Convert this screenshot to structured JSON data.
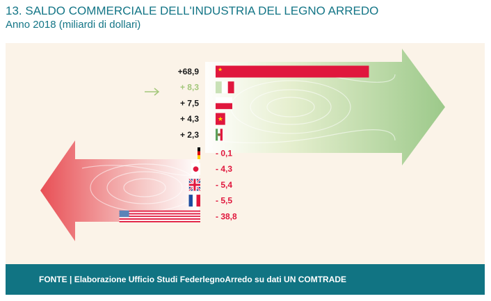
{
  "title": "13. SALDO COMMERCIALE DELL'INDUSTRIA DEL LEGNO ARREDO",
  "subtitle": "Anno 2018 (miliardi di dollari)",
  "footer": "FONTE | Elaborazione Ufficio Studi FederlegnoArredo su dati UN COMTRADE",
  "colors": {
    "teal": "#137586",
    "positive_bar": "#e0173d",
    "highlight_label": "#a3c77a",
    "negative_label": "#e0173d",
    "positive_label": "#1a1a1a"
  },
  "chart_data": {
    "type": "bar",
    "title": "13. SALDO COMMERCIALE DELL'INDUSTRIA DEL LEGNO ARREDO",
    "subtitle": "Anno 2018 (miliardi di dollari)",
    "orientation": "horizontal",
    "unit": "miliardi di dollari",
    "items": [
      {
        "flag": "china-flag",
        "value": 68.9,
        "label": "+68,9",
        "highlight": false
      },
      {
        "flag": "italy-flag",
        "value": 8.3,
        "label": "+ 8,3",
        "highlight": true
      },
      {
        "flag": "poland-flag",
        "value": 7.5,
        "label": "+ 7,5",
        "highlight": false
      },
      {
        "flag": "vietnam-flag",
        "value": 4.3,
        "label": "+ 4,3",
        "highlight": false
      },
      {
        "flag": "mexico-flag",
        "value": 2.3,
        "label": "+ 2,3",
        "highlight": false
      },
      {
        "flag": "germany-flag",
        "value": -0.1,
        "label": "- 0,1",
        "highlight": false
      },
      {
        "flag": "japan-flag",
        "value": -4.3,
        "label": "- 4,3",
        "highlight": false
      },
      {
        "flag": "uk-flag",
        "value": -5.4,
        "label": "- 5,4",
        "highlight": false
      },
      {
        "flag": "france-flag",
        "value": -5.5,
        "label": "- 5,5",
        "highlight": false
      },
      {
        "flag": "usa-flag",
        "value": -38.8,
        "label": "- 38,8",
        "highlight": false
      }
    ]
  }
}
